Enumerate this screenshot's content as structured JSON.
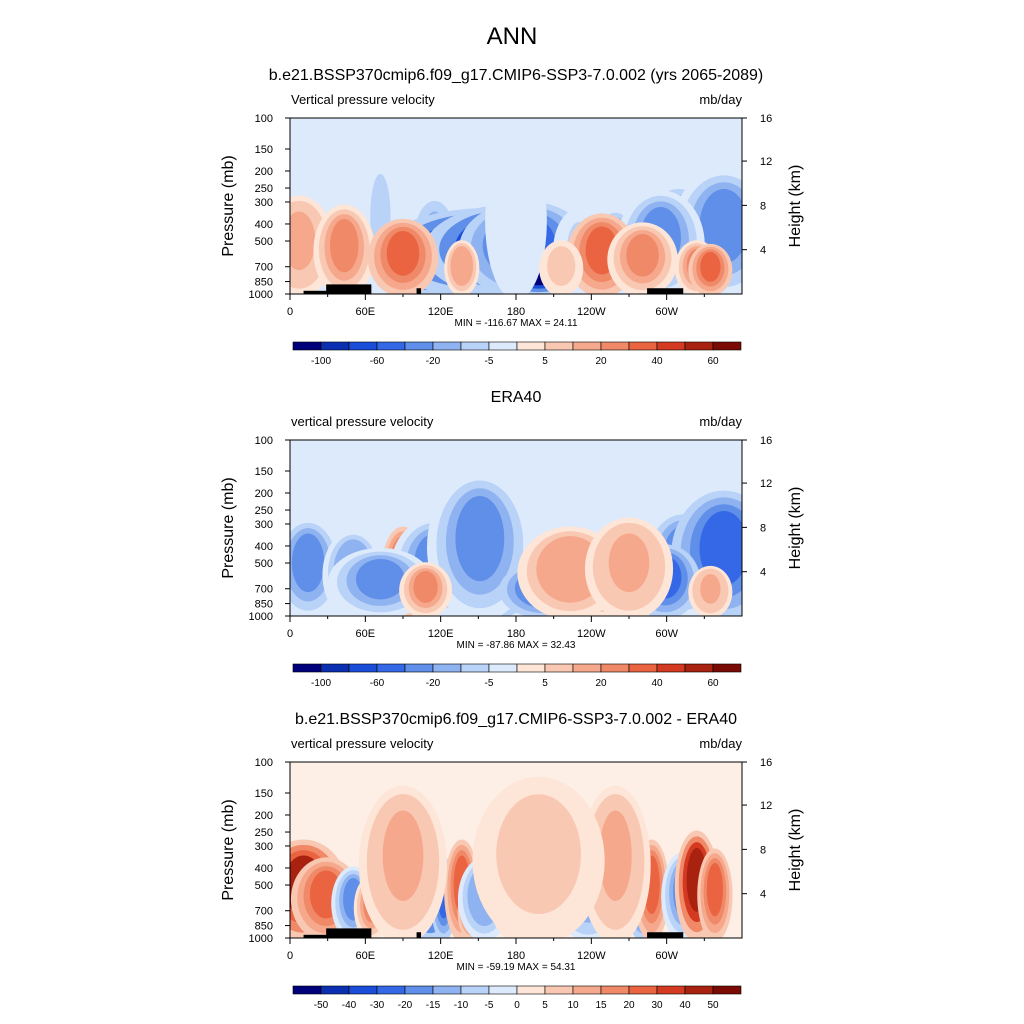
{
  "figure": {
    "title": "ANN"
  },
  "chart_data": [
    {
      "type": "heatmap",
      "title": "b.e21.BSSP370cmip6.f09_g17.CMIP6-SSP3-7.0.002 (yrs 2065-2089)",
      "left_label": "Vertical pressure velocity",
      "right_label": "mb/day",
      "xlabel": "",
      "ylabel": "Pressure (mb)",
      "y2label": "Height (km)",
      "x_ticks": [
        "0",
        "60E",
        "120E",
        "180",
        "120W",
        "60W"
      ],
      "y_ticks": [
        "100",
        "150",
        "200",
        "250",
        "300",
        "400",
        "500",
        "700",
        "850",
        "1000"
      ],
      "y2_ticks": [
        "16",
        "12",
        "8",
        "4"
      ],
      "stats": "MIN = -116.67  MAX =  24.11",
      "colorbar_labels": [
        "-100",
        "-60",
        "-20",
        "-5",
        "5",
        "20",
        "40",
        "60"
      ],
      "colorbar_colors": [
        "#00007a",
        "#0a2fb0",
        "#1a4ed8",
        "#3568e6",
        "#5f8fe8",
        "#8fb2f0",
        "#b9d2f7",
        "#dceafc",
        "#fde5d7",
        "#f9c8b2",
        "#f6a88c",
        "#f08968",
        "#ea6441",
        "#d43a21",
        "#a9210f",
        "#7a0a04"
      ],
      "domain": "0-360 longitude, 1000-100 mb",
      "cells": [
        [
          0.08,
          0.06,
          -0.5,
          -0.25
        ],
        [
          0.18,
          0.06,
          -0.45,
          -0.3
        ],
        [
          0.32,
          0.06,
          -0.55,
          -0.32
        ],
        [
          0.45,
          0.05,
          -0.5,
          -0.28
        ],
        [
          0.56,
          0.05,
          -0.38,
          -0.22
        ],
        [
          0.72,
          0.06,
          -0.48,
          -0.4
        ],
        [
          0.86,
          0.1,
          -0.62,
          -0.42
        ],
        [
          0.96,
          0.12,
          -0.7,
          -0.45
        ],
        [
          0.31,
          0.2,
          -0.4,
          -0.85
        ],
        [
          0.44,
          0.25,
          -0.48,
          -0.9
        ],
        [
          0.49,
          0.2,
          -0.5,
          -0.95
        ],
        [
          0.52,
          0.15,
          -0.52,
          -0.6
        ],
        [
          0.64,
          0.06,
          -0.48,
          -0.15
        ],
        [
          0.66,
          0.04,
          -0.42,
          -0.1
        ],
        [
          0.55,
          0.1,
          -0.2,
          -0.95
        ],
        [
          0.82,
          0.1,
          -0.58,
          -0.4
        ],
        [
          0.5,
          0.07,
          -0.85,
          -0.05
        ],
        [
          0.2,
          0.05,
          -0.8,
          -0.15
        ],
        [
          0.02,
          0.08,
          -0.55,
          0.25
        ],
        [
          0.12,
          0.07,
          -0.5,
          0.45
        ],
        [
          0.25,
          0.08,
          -0.42,
          0.5
        ],
        [
          0.69,
          0.08,
          -0.45,
          0.5
        ],
        [
          0.78,
          0.08,
          -0.4,
          0.4
        ],
        [
          0.9,
          0.05,
          -0.3,
          0.45
        ],
        [
          0.93,
          0.05,
          -0.28,
          0.55
        ],
        [
          0.38,
          0.04,
          -0.3,
          0.35
        ],
        [
          0.6,
          0.05,
          -0.3,
          0.2
        ]
      ],
      "topography": [
        [
          0.03,
          0.12,
          10
        ],
        [
          0.08,
          0.1,
          30
        ],
        [
          0.28,
          0.01,
          18
        ],
        [
          0.79,
          0.08,
          18
        ]
      ],
      "min": -116.67,
      "max": 24.11
    },
    {
      "type": "heatmap",
      "title": "ERA40",
      "left_label": "vertical pressure velocity",
      "right_label": "mb/day",
      "xlabel": "",
      "ylabel": "Pressure (mb)",
      "y2label": "Height (km)",
      "x_ticks": [
        "0",
        "60E",
        "120E",
        "180",
        "120W",
        "60W"
      ],
      "y_ticks": [
        "100",
        "150",
        "200",
        "250",
        "300",
        "400",
        "500",
        "700",
        "850",
        "1000"
      ],
      "y2_ticks": [
        "16",
        "12",
        "8",
        "4"
      ],
      "stats": "MIN = -87.86  MAX =  32.43",
      "colorbar_labels": [
        "-100",
        "-60",
        "-20",
        "-5",
        "5",
        "20",
        "40",
        "60"
      ],
      "colorbar_colors": [
        "#00007a",
        "#0a2fb0",
        "#1a4ed8",
        "#3568e6",
        "#5f8fe8",
        "#8fb2f0",
        "#b9d2f7",
        "#dceafc",
        "#fde5d7",
        "#f9c8b2",
        "#f6a88c",
        "#f08968",
        "#ea6441",
        "#d43a21",
        "#a9210f",
        "#7a0a04"
      ],
      "cells": [
        [
          0.04,
          0.08,
          -0.55,
          -0.45
        ],
        [
          0.14,
          0.07,
          -0.48,
          -0.35
        ],
        [
          0.25,
          0.05,
          -0.5,
          0.6
        ],
        [
          0.32,
          0.1,
          -0.55,
          -0.45
        ],
        [
          0.44,
          0.12,
          -0.55,
          -0.75
        ],
        [
          0.58,
          0.07,
          -0.5,
          -0.4
        ],
        [
          0.72,
          0.07,
          -0.5,
          -0.3
        ],
        [
          0.87,
          0.1,
          -0.6,
          -0.5
        ],
        [
          0.96,
          0.12,
          -0.7,
          -0.52
        ],
        [
          0.2,
          0.12,
          -0.38,
          -0.5
        ],
        [
          0.42,
          0.12,
          -0.8,
          -0.4
        ],
        [
          0.56,
          0.1,
          -0.3,
          -0.55
        ],
        [
          0.8,
          0.05,
          -0.3,
          -0.35
        ],
        [
          0.83,
          0.08,
          -0.4,
          -0.6
        ],
        [
          0.3,
          0.06,
          -0.3,
          0.4
        ],
        [
          0.68,
          0.14,
          -0.42,
          0.45
        ],
        [
          0.62,
          0.12,
          -0.5,
          0.35
        ],
        [
          0.75,
          0.1,
          -0.55,
          0.3
        ],
        [
          0.93,
          0.05,
          -0.28,
          0.3
        ]
      ],
      "topography": [],
      "min": -87.86,
      "max": 32.43
    },
    {
      "type": "heatmap",
      "title": "b.e21.BSSP370cmip6.f09_g17.CMIP6-SSP3-7.0.002 - ERA40",
      "left_label": "vertical pressure velocity",
      "right_label": "mb/day",
      "xlabel": "",
      "ylabel": "Pressure (mb)",
      "y2label": "Height (km)",
      "x_ticks": [
        "0",
        "60E",
        "120E",
        "180",
        "120W",
        "60W"
      ],
      "y_ticks": [
        "100",
        "150",
        "200",
        "250",
        "300",
        "400",
        "500",
        "700",
        "850",
        "1000"
      ],
      "y2_ticks": [
        "16",
        "12",
        "8",
        "4"
      ],
      "stats": "MIN = -59.19  MAX =  54.31",
      "colorbar_labels": [
        "-50",
        "-40",
        "-30",
        "-20",
        "-15",
        "-10",
        "-5",
        "0",
        "5",
        "10",
        "15",
        "20",
        "30",
        "40",
        "50"
      ],
      "colorbar_colors": [
        "#00007a",
        "#0a2fb0",
        "#1a4ed8",
        "#3568e6",
        "#5f8fe8",
        "#8fb2f0",
        "#b9d2f7",
        "#dceafc",
        "#fde5d7",
        "#f9c8b2",
        "#f6a88c",
        "#f08968",
        "#ea6441",
        "#d43a21",
        "#a9210f",
        "#7a0a04"
      ],
      "cells": [
        [
          0.03,
          0.1,
          -0.55,
          0.75
        ],
        [
          0.08,
          0.08,
          -0.45,
          0.5
        ],
        [
          0.14,
          0.05,
          -0.4,
          -0.45
        ],
        [
          0.18,
          0.04,
          -0.35,
          0.4
        ],
        [
          0.28,
          0.05,
          -0.5,
          0.85
        ],
        [
          0.31,
          0.06,
          -0.5,
          -0.85
        ],
        [
          0.34,
          0.03,
          -0.45,
          -0.6
        ],
        [
          0.38,
          0.04,
          -0.55,
          0.55
        ],
        [
          0.4,
          0.03,
          -0.3,
          0.7
        ],
        [
          0.43,
          0.06,
          -0.45,
          -0.35
        ],
        [
          0.5,
          0.06,
          -0.45,
          0.35
        ],
        [
          0.57,
          0.09,
          -0.42,
          -0.35
        ],
        [
          0.66,
          0.07,
          -0.35,
          -0.28
        ],
        [
          0.78,
          0.04,
          -0.5,
          -0.7
        ],
        [
          0.8,
          0.04,
          -0.55,
          0.55
        ],
        [
          0.87,
          0.05,
          -0.48,
          -0.4
        ],
        [
          0.9,
          0.05,
          -0.6,
          0.85
        ],
        [
          0.94,
          0.04,
          -0.5,
          0.5
        ],
        [
          0.72,
          0.08,
          -0.85,
          0.3
        ],
        [
          0.25,
          0.1,
          -0.85,
          0.25
        ],
        [
          0.55,
          0.15,
          -0.9,
          0.2
        ]
      ],
      "topography": [
        [
          0.03,
          0.12,
          10
        ],
        [
          0.08,
          0.1,
          30
        ],
        [
          0.28,
          0.01,
          18
        ],
        [
          0.79,
          0.08,
          18
        ]
      ],
      "min": -59.19,
      "max": 54.31
    }
  ]
}
